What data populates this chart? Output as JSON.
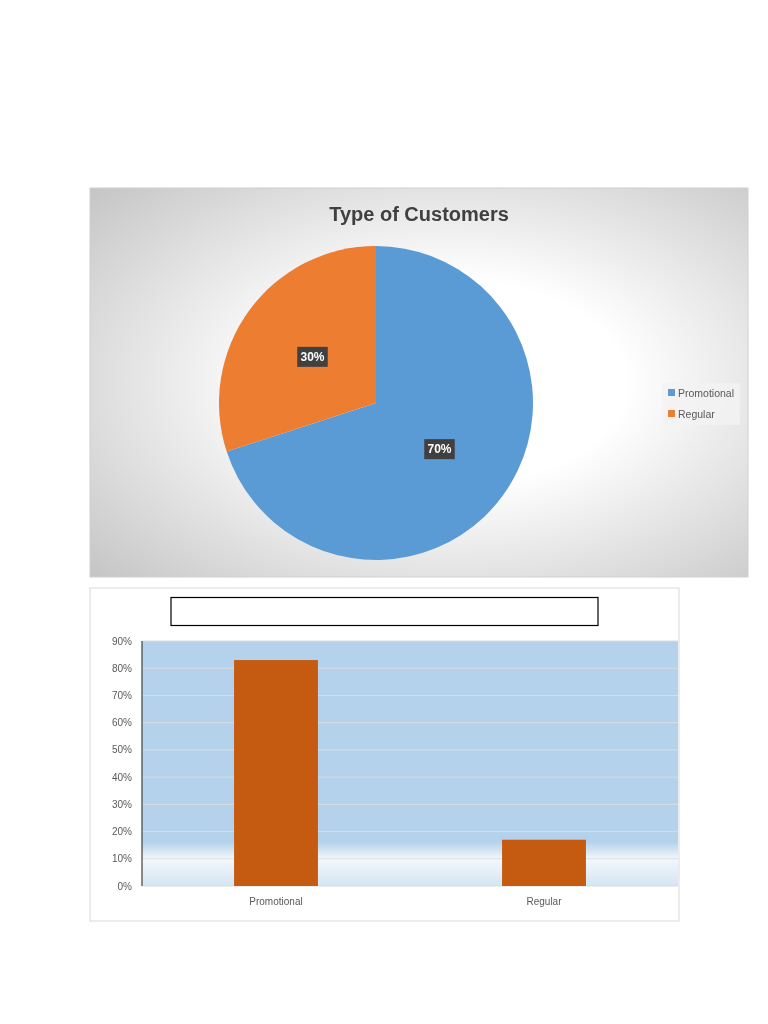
{
  "chart_data": [
    {
      "type": "pie",
      "title": "Type of Customers",
      "categories": [
        "Promotional",
        "Regular"
      ],
      "values": [
        70,
        30
      ],
      "colors": [
        "#5b9bd5",
        "#ed7d31"
      ],
      "value_labels": [
        "70%",
        "30%"
      ],
      "legend": "right"
    },
    {
      "type": "bar",
      "categories": [
        "Promotional",
        "Regular"
      ],
      "values": [
        83,
        17
      ],
      "color": "#c55a11",
      "ylim": [
        0,
        90
      ],
      "yticks": [
        {
          "value": 0,
          "label": "0%"
        },
        {
          "value": 10,
          "label": "10%"
        },
        {
          "value": 20,
          "label": "20%"
        },
        {
          "value": 30,
          "label": "30%"
        },
        {
          "value": 40,
          "label": "40%"
        },
        {
          "value": 50,
          "label": "50%"
        },
        {
          "value": 60,
          "label": "60%"
        },
        {
          "value": 70,
          "label": "70%"
        },
        {
          "value": 80,
          "label": "80%"
        },
        {
          "value": 90,
          "label": "90%"
        }
      ],
      "grid": "y"
    }
  ]
}
